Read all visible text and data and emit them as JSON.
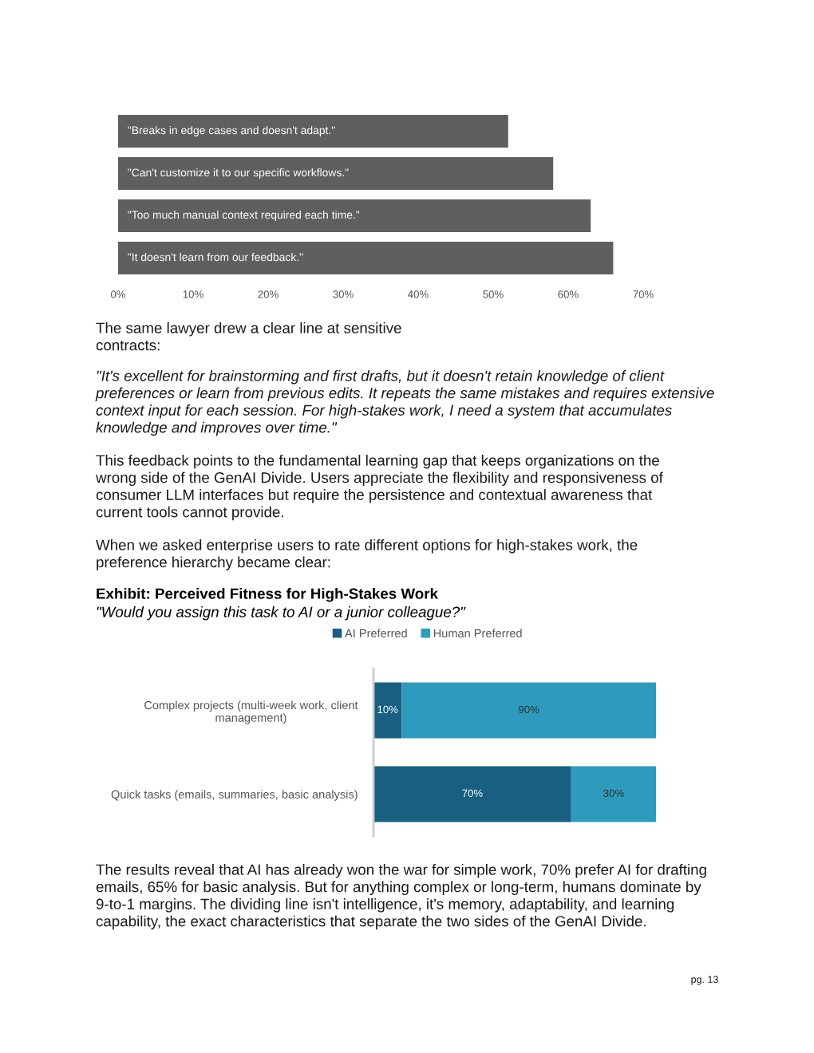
{
  "chart_data": [
    {
      "type": "bar",
      "orientation": "horizontal",
      "categories": [
        "\"Breaks in edge cases and doesn't adapt.\"",
        "\"Can't customize it to our specific workflows.\"",
        "\"Too much manual context required each time.\"",
        "\"It doesn't learn from our feedback.\""
      ],
      "values": [
        52,
        58,
        63,
        66
      ],
      "color": "#5f5f5f",
      "xlim": [
        0,
        70
      ],
      "xticks": [
        {
          "value": 0,
          "label": "0%"
        },
        {
          "value": 10,
          "label": "10%"
        },
        {
          "value": 20,
          "label": "20%"
        },
        {
          "value": 30,
          "label": "30%"
        },
        {
          "value": 40,
          "label": "40%"
        },
        {
          "value": 50,
          "label": "50%"
        },
        {
          "value": 60,
          "label": "60%"
        },
        {
          "value": 70,
          "label": "70%"
        }
      ],
      "tick_labels": "x",
      "grid": false,
      "legend": false,
      "annotations": [
        "The same lawyer drew a clear line at sensitive\ncontracts:",
        "\"It's excellent for brainstorming and first drafts, but it doesn't retain knowledge of client\npreferences or learn from previous edits. It repeats the same mistakes and requires extensive\ncontext input for each session. For high-stakes work, I need a system that accumulates\nknowledge and improves over time.\"",
        "This feedback points to the fundamental learning gap that keeps organizations on the\nwrong side of the GenAI Divide. Users appreciate the flexibility and responsiveness of\nconsumer LLM interfaces but require the persistence and contextual awareness that\ncurrent tools cannot provide.",
        "When we asked enterprise users to rate different options for high-stakes work, the\npreference hierarchy became clear:"
      ]
    },
    {
      "type": "bar",
      "orientation": "horizontal",
      "stacked": true,
      "title": "Exhibit: Perceived Fitness for High-Stakes Work",
      "subtitle": "\"Would you assign this task to AI or a junior colleague?\"",
      "categories": [
        "Complex projects (multi-week work, client\nmanagement)",
        "Quick tasks (emails, summaries, basic analysis)"
      ],
      "series": [
        {
          "name": "AI Preferred",
          "color": "#195f82",
          "values": [
            10,
            70
          ],
          "value_labels": [
            "10%",
            "70%"
          ]
        },
        {
          "name": "Human Preferred",
          "color": "#2e9bbd",
          "values": [
            90,
            30
          ],
          "value_labels": [
            "90%",
            "30%"
          ]
        }
      ],
      "tick_labels": "y",
      "grid": false,
      "legend": "top",
      "annotations": [
        "The results reveal that AI has already won the war for simple work, 70% prefer AI for drafting\nemails, 65% for basic analysis. But for anything complex or long-term, humans dominate by\n9-to-1 margins. The dividing line isn't intelligence, it's memory, adaptability, and learning\ncapability, the exact characteristics that separate the two sides of the GenAI Divide.",
        "pg. 13"
      ]
    }
  ]
}
